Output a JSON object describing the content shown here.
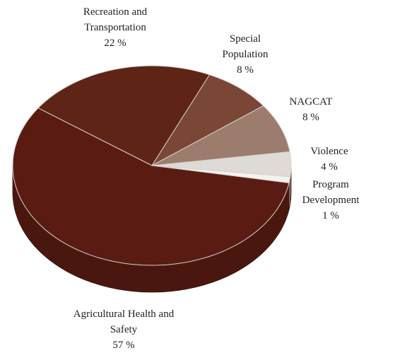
{
  "chart_data": {
    "type": "pie",
    "categories": [
      "Program Development",
      "Violence",
      "NAGCAT",
      "Special Population",
      "Recreation and Transportation",
      "Agricultural Health and Safety"
    ],
    "values": [
      1,
      4,
      8,
      8,
      22,
      57
    ],
    "value_labels": [
      "1 %",
      "4 %",
      "8 %",
      "8 %",
      "22 %",
      "57 %"
    ],
    "colors": [
      "#f4f2ef",
      "#dedad6",
      "#9c7c6c",
      "#7a4636",
      "#5e2416",
      "#5a1c12"
    ]
  }
}
